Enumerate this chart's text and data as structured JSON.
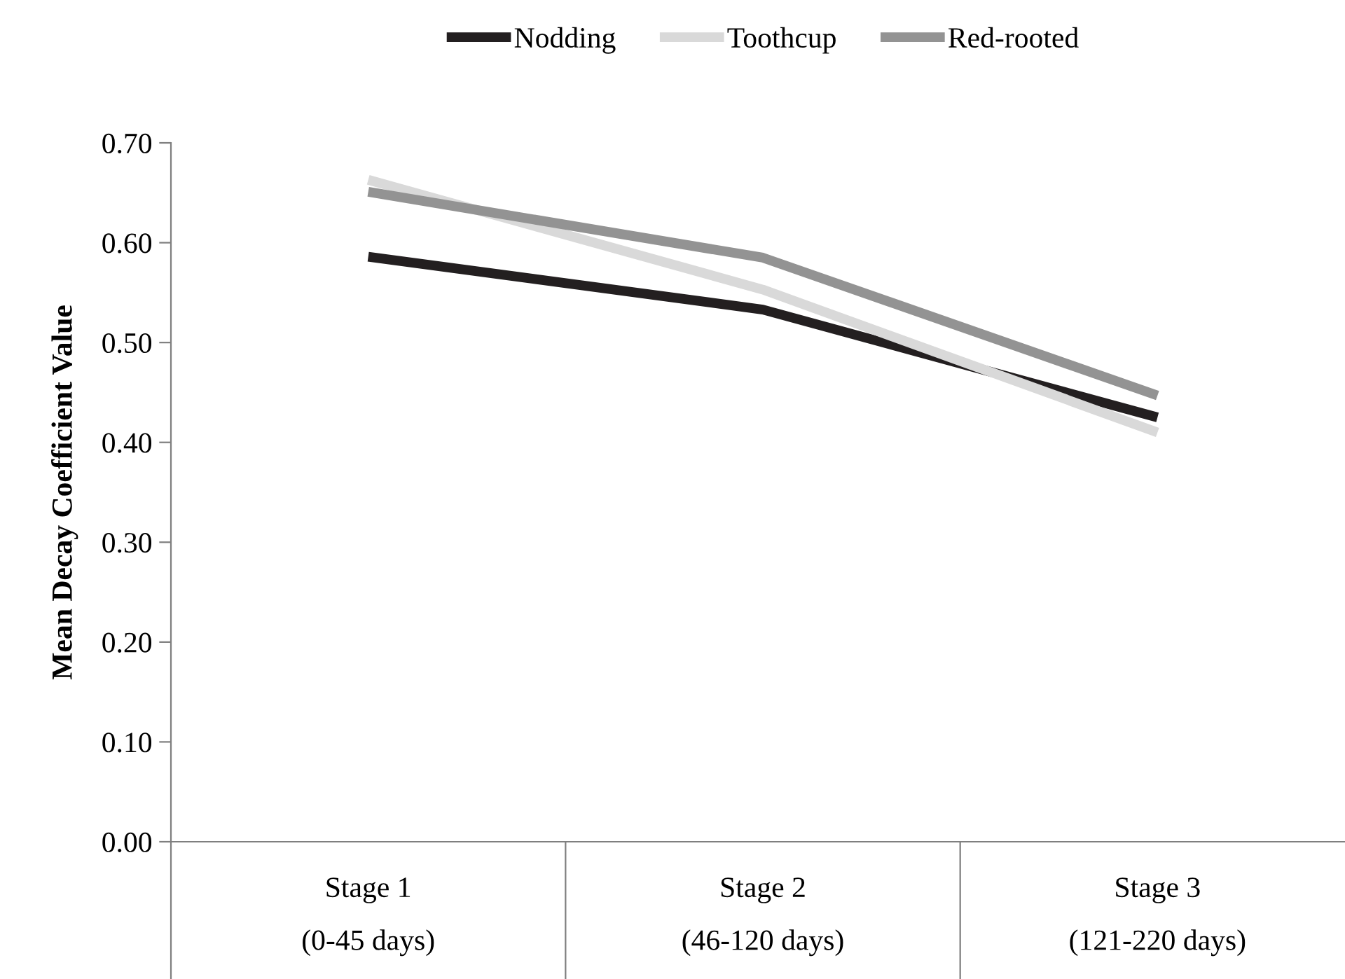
{
  "chart_data": {
    "type": "line",
    "ylabel": "Mean Decay Coefficient Value",
    "categories": [
      "Stage 1\n(0-45 days)",
      "Stage 2\n(46-120 days)",
      "Stage 3\n(121-220 days)"
    ],
    "series": [
      {
        "name": "Nodding",
        "color": "#231f20",
        "values": [
          0.586,
          0.533,
          0.425
        ]
      },
      {
        "name": "Toothcup",
        "color": "#d9d9d9",
        "values": [
          0.663,
          0.553,
          0.41
        ]
      },
      {
        "name": "Red-rooted",
        "color": "#939393",
        "values": [
          0.651,
          0.585,
          0.447
        ]
      }
    ],
    "ylim": [
      0,
      0.7
    ],
    "yticks": [
      {
        "value": 0,
        "label": "0.00"
      },
      {
        "value": 0.1,
        "label": "0.10"
      },
      {
        "value": 0.2,
        "label": "0.20"
      },
      {
        "value": 0.3,
        "label": "0.30"
      },
      {
        "value": 0.4,
        "label": "0.40"
      },
      {
        "value": 0.5,
        "label": "0.50"
      },
      {
        "value": 0.6,
        "label": "0.60"
      },
      {
        "value": 0.7,
        "label": "0.70"
      }
    ],
    "grid": false,
    "legend": "top",
    "marker": "none",
    "line_style": "solid"
  }
}
